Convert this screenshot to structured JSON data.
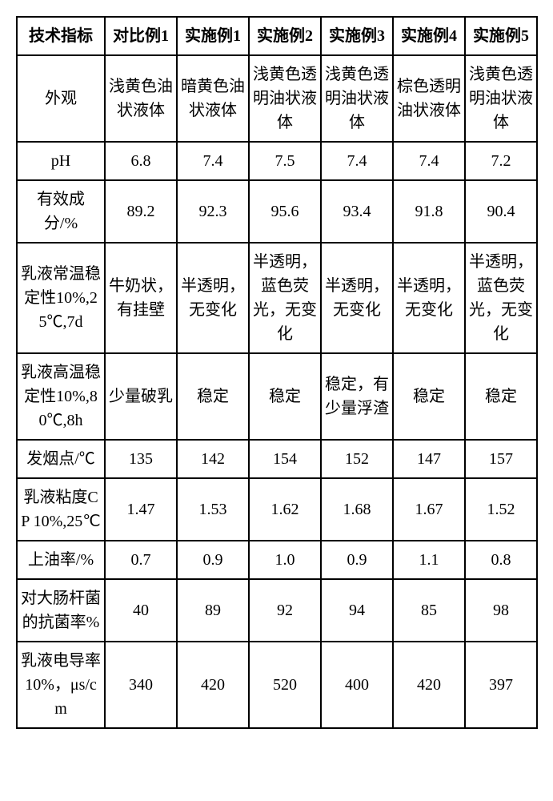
{
  "table": {
    "columns": [
      "技术指标",
      "对比例1",
      "实施例1",
      "实施例2",
      "实施例3",
      "实施例4",
      "实施例5"
    ],
    "rows": [
      {
        "label": "外观",
        "cells": [
          "浅黄色油状液体",
          "暗黄色油状液体",
          "浅黄色透明油状液体",
          "浅黄色透明油状液体",
          "棕色透明油状液体",
          "浅黄色透明油状液体"
        ]
      },
      {
        "label": "pH",
        "cells": [
          "6.8",
          "7.4",
          "7.5",
          "7.4",
          "7.4",
          "7.2"
        ]
      },
      {
        "label": "有效成分/%",
        "cells": [
          "89.2",
          "92.3",
          "95.6",
          "93.4",
          "91.8",
          "90.4"
        ]
      },
      {
        "label": "乳液常温稳定性10%,25℃,7d",
        "cells": [
          "牛奶状，有挂壁",
          "半透明，无变化",
          "半透明，蓝色荧光，无变化",
          "半透明，无变化",
          "半透明，无变化",
          "半透明，蓝色荧光，无变化"
        ]
      },
      {
        "label": "乳液高温稳定性10%,80℃,8h",
        "cells": [
          "少量破乳",
          "稳定",
          "稳定",
          "稳定，有少量浮渣",
          "稳定",
          "稳定"
        ]
      },
      {
        "label": "发烟点/℃",
        "cells": [
          "135",
          "142",
          "154",
          "152",
          "147",
          "157"
        ]
      },
      {
        "label": "乳液粘度CP 10%,25℃",
        "cells": [
          "1.47",
          "1.53",
          "1.62",
          "1.68",
          "1.67",
          "1.52"
        ]
      },
      {
        "label": "上油率/%",
        "cells": [
          "0.7",
          "0.9",
          "1.0",
          "0.9",
          "1.1",
          "0.8"
        ]
      },
      {
        "label": "对大肠杆菌的抗菌率%",
        "cells": [
          "40",
          "89",
          "92",
          "94",
          "85",
          "98"
        ]
      },
      {
        "label": "乳液电导率10%，μs/cm",
        "cells": [
          "340",
          "420",
          "520",
          "400",
          "420",
          "397"
        ]
      }
    ],
    "border_color": "#000000",
    "background_color": "#ffffff",
    "text_color": "#000000",
    "header_fontsize": 20,
    "cell_fontsize": 20,
    "col_header_width": 110,
    "col_data_width": 90
  }
}
